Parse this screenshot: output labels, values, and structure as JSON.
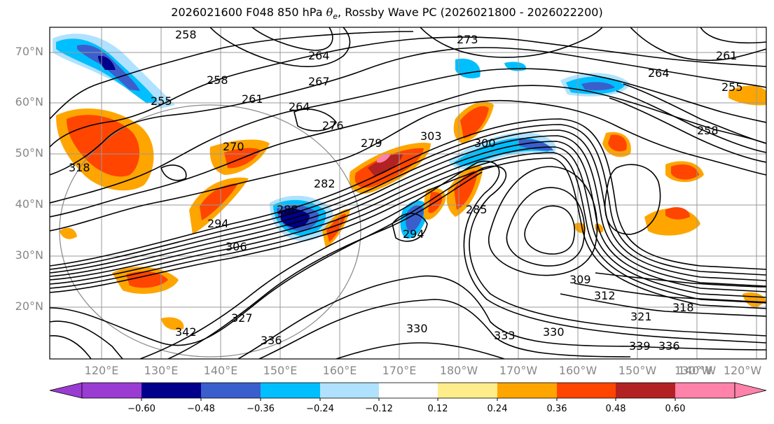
{
  "title": {
    "prefix": "2026021600 F048 850 hPa ",
    "theta": "θ",
    "sub": "e",
    "suffix": ", Rossby Wave PC (2026021800 - 2026022200)"
  },
  "lat_labels": [
    "70°N",
    "60°N",
    "50°N",
    "40°N",
    "30°N",
    "20°N"
  ],
  "lon_labels": [
    "120°E",
    "130°E",
    "140°E",
    "150°E",
    "160°E",
    "170°E",
    "180°W",
    "170°W",
    "160°W",
    "150°W",
    "140°W",
    "130°W",
    "120°W"
  ],
  "colorbar": {
    "colors": [
      "#9a3cd2",
      "#00008b",
      "#3a5fcd",
      "#00bfff",
      "#b0e2ff",
      "#ffffff",
      "#ffec8b",
      "#ffa500",
      "#ff4500",
      "#b22222",
      "#ff82ab"
    ],
    "tick_labels": [
      "−0.60",
      "−0.48",
      "−0.36",
      "−0.24",
      "−0.12",
      "0.12",
      "0.24",
      "0.36",
      "0.48",
      "0.60"
    ]
  },
  "contour_labels": [
    "258",
    "273",
    "264",
    "261",
    "258",
    "267",
    "261",
    "255",
    "264",
    "264",
    "276",
    "279",
    "270",
    "282",
    "288",
    "294",
    "300",
    "294",
    "285",
    "306",
    "309",
    "312",
    "318",
    "321",
    "330",
    "333",
    "330",
    "339",
    "336",
    "327",
    "342",
    "336",
    "303",
    "258",
    "255",
    "318"
  ],
  "map": {
    "ocean_color": "#ffffff",
    "grid_color": "#999999",
    "contour_color": "#000000"
  }
}
